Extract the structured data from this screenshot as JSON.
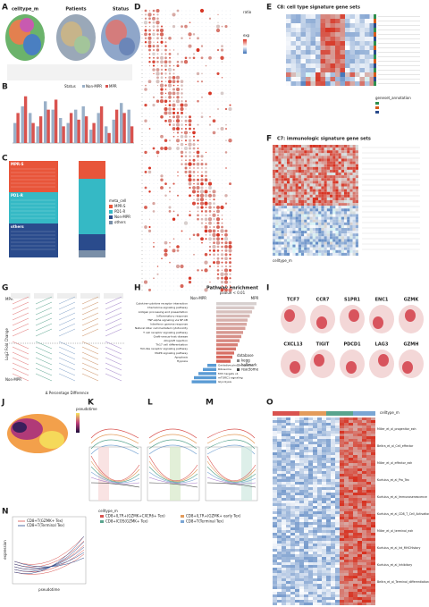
{
  "panels": {
    "A": {
      "label": "A",
      "titles": [
        "celltype_m",
        "Patients",
        "Status"
      ]
    },
    "B": {
      "label": "B",
      "legend_title": "Status",
      "series": [
        {
          "name": "Non-MPR",
          "color": "#9ab0c8",
          "values": [
            0.12,
            0.22,
            0.18,
            0.1,
            0.25,
            0.2,
            0.15,
            0.12,
            0.2,
            0.22,
            0.08,
            0.18,
            0.1,
            0.14,
            0.24,
            0.2
          ]
        },
        {
          "name": "MPR",
          "color": "#d9534f",
          "values": [
            0.18,
            0.28,
            0.12,
            0.16,
            0.2,
            0.26,
            0.1,
            0.18,
            0.14,
            0.16,
            0.12,
            0.22,
            0.06,
            0.2,
            0.18,
            0.1
          ]
        }
      ],
      "ylim": [
        0,
        0.3
      ]
    },
    "C": {
      "label": "C",
      "groups": [
        "MPR-S",
        "PD1-R",
        "others"
      ],
      "legend_title": "meta_cell",
      "legend": [
        {
          "name": "MPR-S",
          "color": "#e8553a"
        },
        {
          "name": "PD1-R",
          "color": "#35b9c5"
        },
        {
          "name": "Non-MPR",
          "color": "#2a4b8c"
        },
        {
          "name": "others",
          "color": "#7a8fa8"
        }
      ]
    },
    "D": {
      "label": "D",
      "legend_titles": [
        "ratio",
        "exp"
      ]
    },
    "E": {
      "label": "E",
      "title": "C8: cell type signature gene sets",
      "legend_title": "geneset_annotation"
    },
    "F": {
      "label": "F",
      "title": "C7: immunologic signature gene sets",
      "legend_title": "celltype_m"
    },
    "G": {
      "label": "G",
      "top": "MPR",
      "bottom": "Non-MPR",
      "ylabel": "Log2 Fold Change",
      "xlabel": "Δ Percentage Difference"
    },
    "H": {
      "label": "H",
      "title": "Pathway enrichment",
      "subtitle": "pvalue < 0.01",
      "left": "Non-MPR",
      "right": "MPR",
      "xlim": [
        -6,
        10
      ],
      "pathways": [
        "Cytokine-cytokine receptor interaction",
        "Chemokine signaling pathway",
        "Antigen processing and presentation",
        "Inflammatory response",
        "TNF-alpha signaling via NF-kB",
        "Interferon gamma response",
        "Natural killer cell mediated cytotoxicity",
        "T cell receptor signaling pathway",
        "Graft-versus-host disease",
        "Allograft rejection",
        "Th17 cell differentiation",
        "Toll-like receptor signaling pathway",
        "MAPK signaling pathway",
        "Apoptosis",
        "Hypoxia",
        "Oxidative phosphorylation",
        "Ribosome",
        "MYC targets v1",
        "mTORC1 signaling",
        "Glycolysis"
      ],
      "values": [
        9,
        8.5,
        8,
        7.5,
        7,
        6.8,
        6.5,
        6,
        5.6,
        5.2,
        4.8,
        4.4,
        4,
        3.6,
        3.2,
        -2,
        -3,
        -4,
        -5,
        -5.5
      ],
      "legend_title": "database",
      "legend": [
        "kegg",
        "hallmark",
        "reactome"
      ]
    },
    "I": {
      "label": "I",
      "genes": [
        "TCF7",
        "CCR7",
        "S1PR1",
        "ENC1",
        "GZMK",
        "CXCL13",
        "TIGIT",
        "PDCD1",
        "LAG3",
        "GZMH"
      ]
    },
    "J": {
      "label": "J",
      "legend_title": "pseudotime"
    },
    "K": {
      "label": "K"
    },
    "L": {
      "label": "L"
    },
    "M": {
      "label": "M"
    },
    "KLM": {
      "legend_title": "celltype_m",
      "legend": [
        "CD8+IL7R+(GZMK+CXCR6+ Tex)",
        "CD8+IL7R+(GZMK+ early Tex)",
        "CD8+ICOS(GZMK+ Tex)",
        "CD8+T(Terminal Tex)"
      ]
    },
    "N": {
      "label": "N",
      "series": [
        "CD8+T(GZMK+ Tex)",
        "CD8+T(Terminal Tex)"
      ],
      "ylabel": "expression",
      "xlabel": "pseudotime"
    },
    "O": {
      "label": "O",
      "legend_title": "celltype_m",
      "rows": [
        "Miller_et_al_progenitor_exh",
        "Beltra_et_al_Cell_effector",
        "Miller_et_al_effector_exh",
        "Kurtulus_et_al_Pro_Tex",
        "Kurtulus_et_al_Immunosenescence",
        "Kurtulus_et_al_CD8_T_Cell_Activation",
        "Miller_et_al_terminal_exh",
        "Kurtulus_et_al_Int_MHCHistory",
        "Kurtulus_et_al_Inhibitory",
        "Beltra_et_al_Terminal_differentiation"
      ]
    }
  }
}
